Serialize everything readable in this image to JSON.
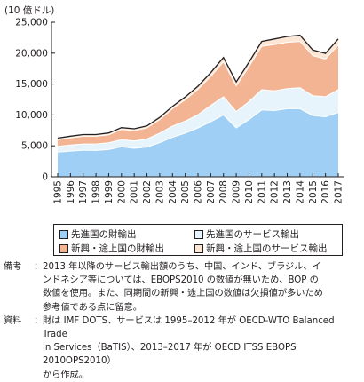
{
  "chart_data": {
    "type": "area",
    "stacked": true,
    "unit_label": "(10 億ドル)",
    "x": [
      "1995",
      "1996",
      "1997",
      "1998",
      "1999",
      "2000",
      "2001",
      "2002",
      "2003",
      "2004",
      "2005",
      "2006",
      "2007",
      "2008",
      "2009",
      "2010",
      "2011",
      "2012",
      "2013",
      "2014",
      "2015",
      "2016",
      "2017"
    ],
    "ylim": [
      0,
      25000
    ],
    "yticks": [
      "0",
      "5,000",
      "10,000",
      "15,000",
      "20,000",
      "25,000"
    ],
    "grid": false,
    "series": [
      {
        "name": "先進国の財輸出",
        "color": "#9fcff5",
        "values": [
          4000,
          4150,
          4300,
          4250,
          4400,
          4850,
          4600,
          4800,
          5500,
          6400,
          7050,
          7900,
          8900,
          10000,
          7900,
          9250,
          10800,
          10700,
          11000,
          11000,
          9900,
          9700,
          10400
        ]
      },
      {
        "name": "先進国のサービス輸出",
        "color": "#e8f4fc",
        "values": [
          900,
          1000,
          1000,
          1050,
          1100,
          1150,
          1200,
          1300,
          1550,
          1800,
          1950,
          2150,
          2650,
          2950,
          2650,
          2900,
          3300,
          3200,
          3250,
          3400,
          3200,
          3250,
          3700
        ]
      },
      {
        "name": "新興・途上国の財輸出",
        "color": "#f3b493",
        "values": [
          1100,
          1150,
          1250,
          1250,
          1300,
          1650,
          1650,
          1800,
          2200,
          2800,
          3450,
          4100,
          4700,
          5650,
          4150,
          5700,
          7000,
          7500,
          7500,
          7500,
          6500,
          6100,
          7200
        ]
      },
      {
        "name": "新興・途上国のサービス輸出",
        "color": "#fce6d6",
        "values": [
          250,
          260,
          270,
          280,
          290,
          300,
          310,
          320,
          350,
          400,
          450,
          500,
          600,
          700,
          650,
          700,
          800,
          900,
          950,
          1000,
          900,
          900,
          1000
        ]
      }
    ],
    "legend_placement": "bottom"
  },
  "notes": [
    {
      "label": "備考",
      "sep": "：",
      "lines": [
        "2013 年以降のサービス輸出額のうち、中国、インド、ブラジル、イ",
        "ンドネシア等については、EBOPS2010 の数値が無いため、BOP の",
        "数値を使用。また、同期間の新興・途上国の数値は欠損値が多いため",
        "参考値である点に留意。"
      ]
    },
    {
      "label": "資料",
      "sep": "：",
      "lines": [
        "財は IMF DOTS、サービスは 1995–2012 年が OECD-WTO Balanced Trade",
        "in Services（BaTIS）、2013–2017 年が OECD ITSS EBOPS 2010OPS2010）",
        "から作成。"
      ]
    }
  ]
}
